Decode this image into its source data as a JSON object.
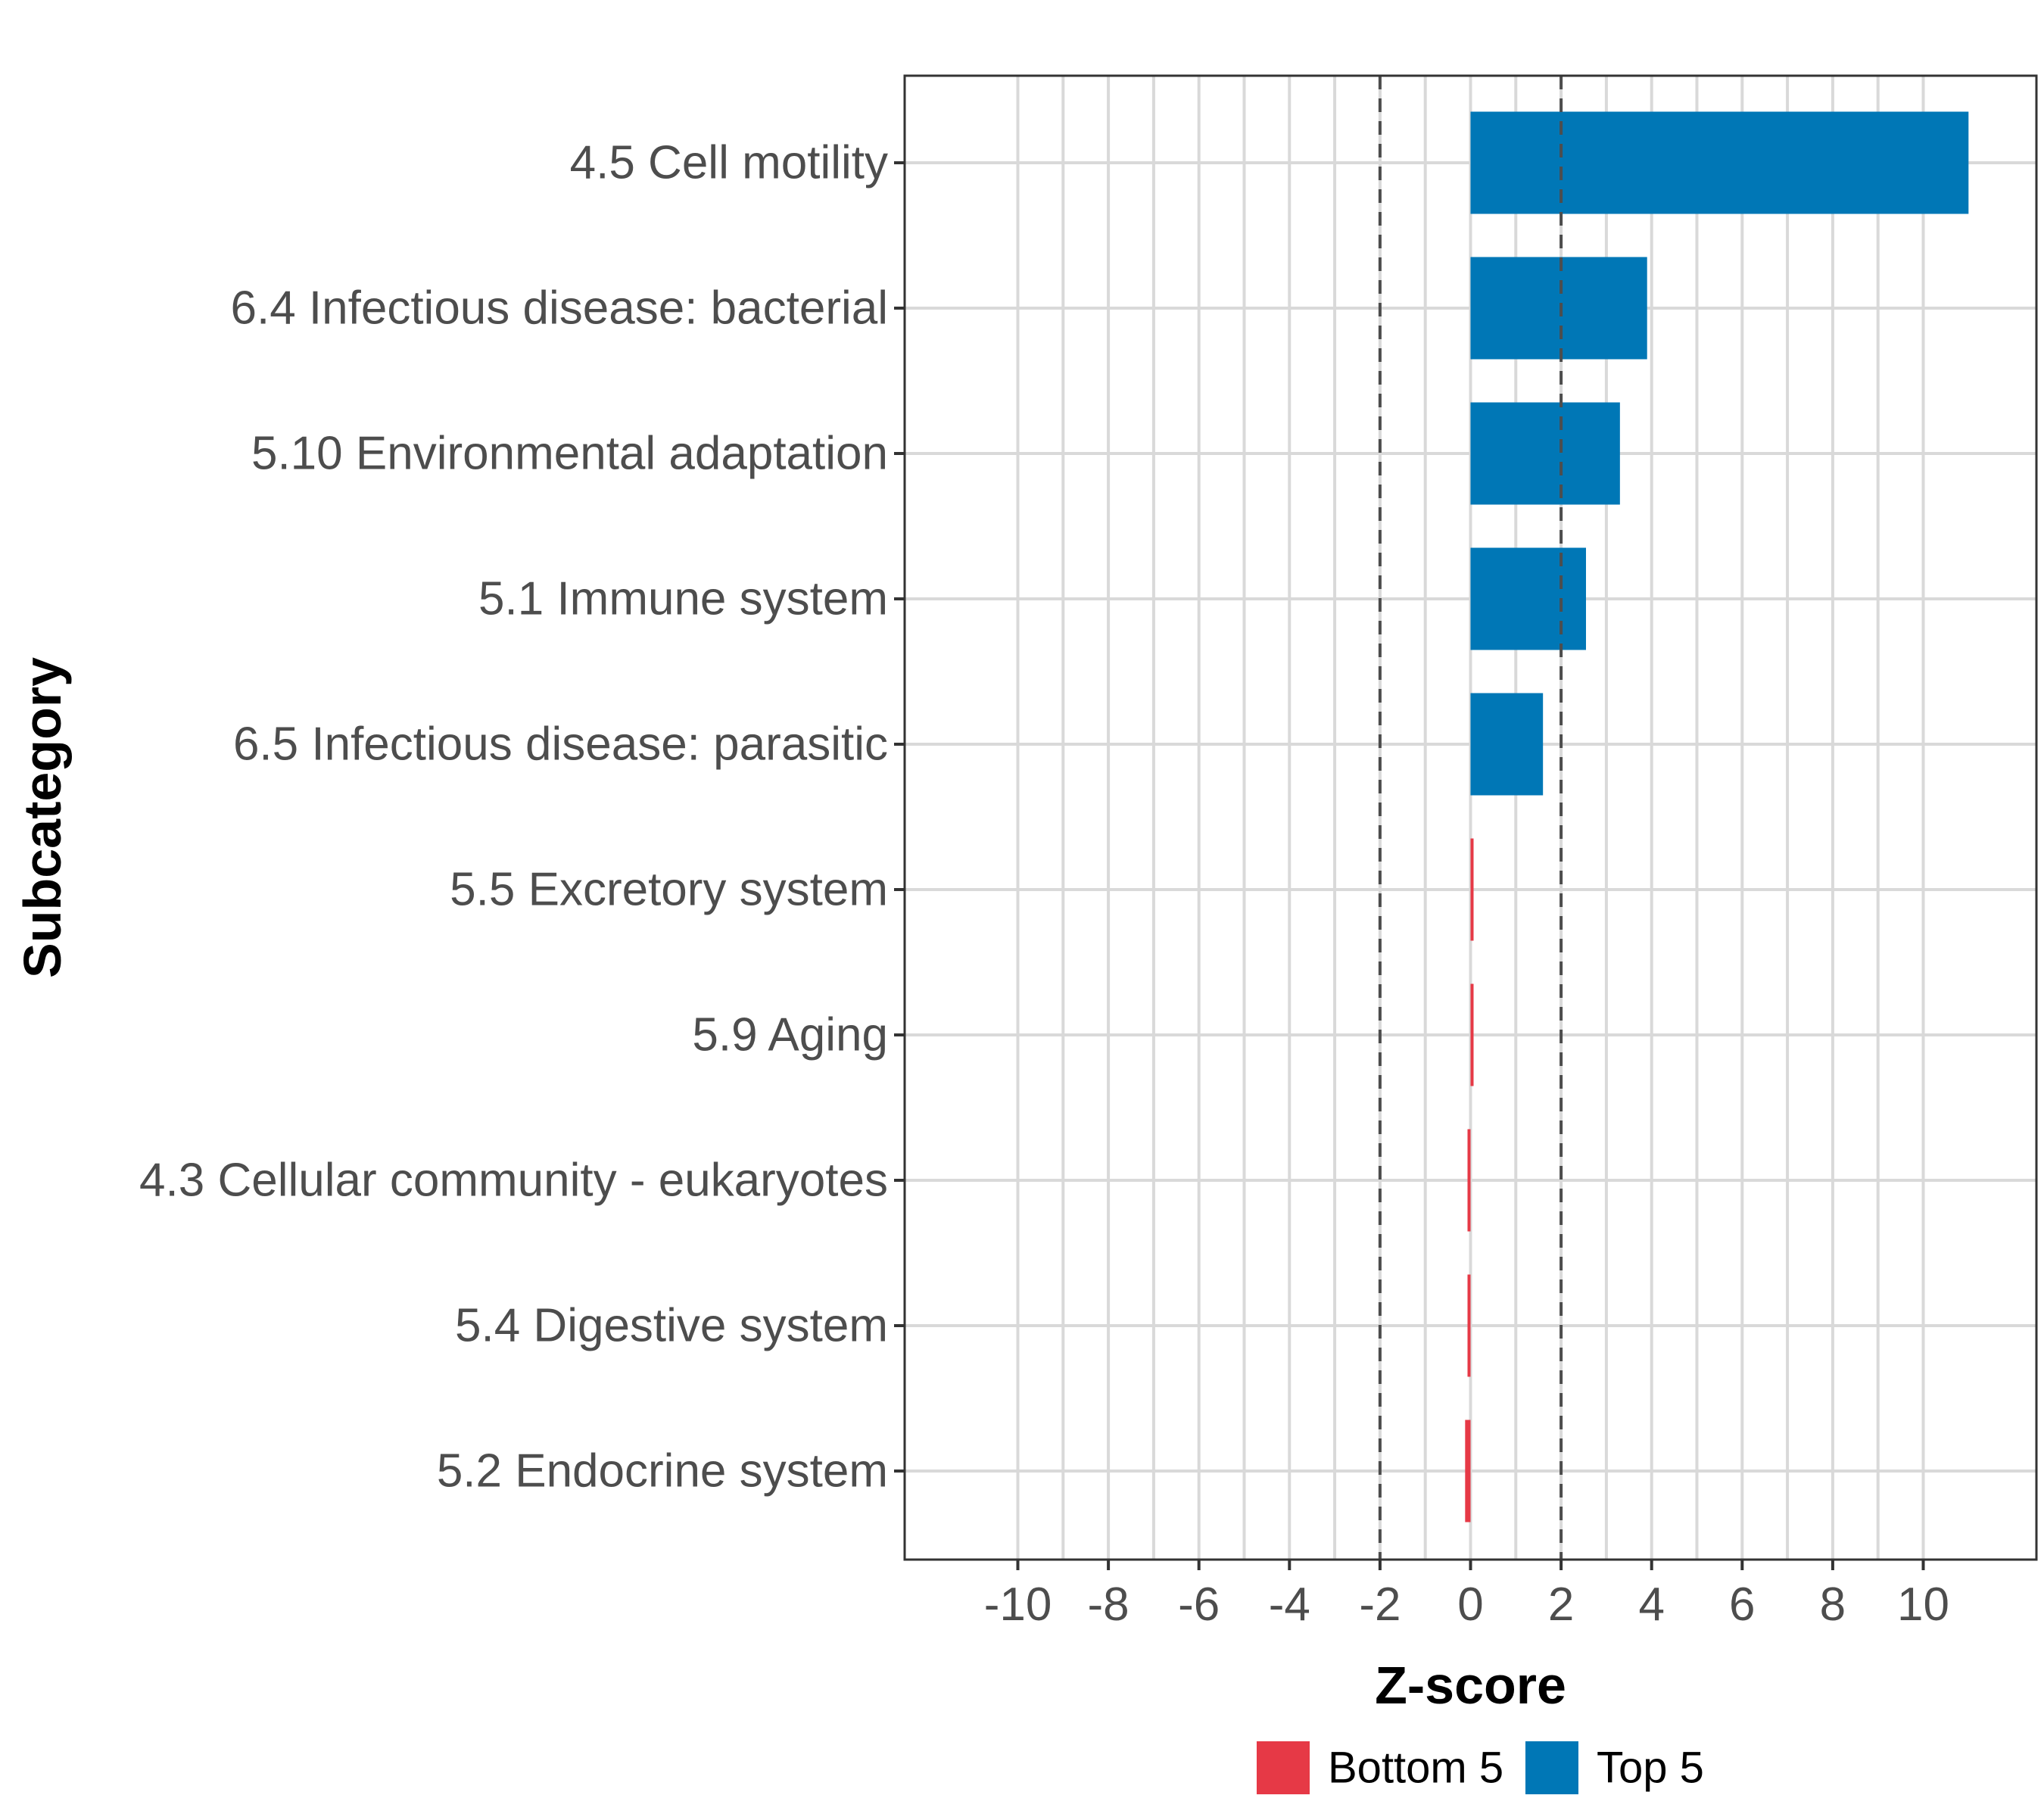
{
  "chart_data": {
    "type": "bar",
    "orientation": "horizontal",
    "xlabel": "Z-score",
    "ylabel": "Subcategory",
    "xlim": [
      -12.5,
      12.5
    ],
    "x_ticks": [
      -10,
      -8,
      -6,
      -4,
      -2,
      0,
      2,
      4,
      6,
      8,
      10
    ],
    "x_tick_labels": [
      "-10",
      "-8",
      "-6",
      "-4",
      "-2",
      "0",
      "2",
      "4",
      "6",
      "8",
      "10"
    ],
    "reference_lines": [
      -2,
      2
    ],
    "grid": true,
    "legend_position": "bottom",
    "legend": [
      {
        "label": "Bottom 5",
        "color": "#E63946"
      },
      {
        "label": "Top 5",
        "color": "#0077B6"
      }
    ],
    "categories": [
      "4.5 Cell motility",
      "6.4 Infectious disease: bacterial",
      "5.10 Environmental adaptation",
      "5.1 Immune system",
      "6.5 Infectious disease: parasitic",
      "5.5 Excretory system",
      "5.9 Aging",
      "4.3 Cellular community - eukaryotes",
      "5.4 Digestive system",
      "5.2 Endocrine system"
    ],
    "values": [
      11.0,
      3.9,
      3.3,
      2.55,
      1.6,
      0.06,
      0.0,
      -0.03,
      -0.06,
      -0.12
    ],
    "groups": [
      "Top 5",
      "Top 5",
      "Top 5",
      "Top 5",
      "Top 5",
      "Bottom 5",
      "Bottom 5",
      "Bottom 5",
      "Bottom 5",
      "Bottom 5"
    ]
  }
}
